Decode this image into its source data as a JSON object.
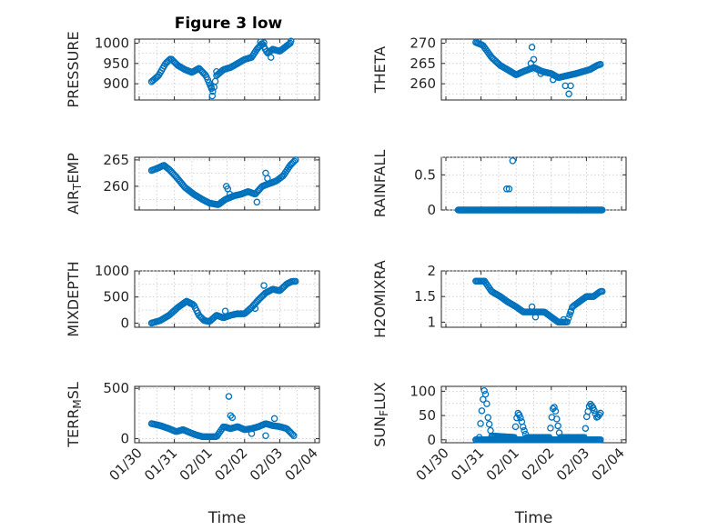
{
  "figure_title": "Figure 3 low",
  "colors": {
    "marker": "#0072BD",
    "axis": "#262626",
    "grid": "#c8c8c8",
    "background": "#ffffff"
  },
  "time_ticks": [
    "01/30",
    "01/31",
    "02/01",
    "02/02",
    "02/03",
    "02/04"
  ],
  "time_axis_label": "Time",
  "chart_data": [
    {
      "type": "scatter",
      "grid": true,
      "title": "Figure 3 low",
      "ylabel": "PRESSURE",
      "xlabel": "",
      "ylim": [
        860,
        1010
      ],
      "xlim": [
        0,
        5
      ],
      "yticks": [
        900,
        950,
        1000
      ],
      "ytick_labels": [
        "900",
        "950",
        "1000"
      ],
      "curve": [
        [
          0.35,
          905
        ],
        [
          0.55,
          920
        ],
        [
          0.75,
          950
        ],
        [
          0.9,
          962
        ],
        [
          1.1,
          945
        ],
        [
          1.3,
          935
        ],
        [
          1.5,
          928
        ],
        [
          1.7,
          938
        ],
        [
          1.9,
          920
        ],
        [
          2.0,
          900
        ],
        [
          2.1,
          880
        ],
        [
          2.2,
          920
        ],
        [
          2.4,
          935
        ],
        [
          2.6,
          940
        ],
        [
          2.8,
          950
        ],
        [
          3.0,
          960
        ],
        [
          3.2,
          965
        ],
        [
          3.35,
          985
        ],
        [
          3.5,
          1000
        ],
        [
          3.65,
          975
        ],
        [
          3.8,
          985
        ],
        [
          4.0,
          980
        ],
        [
          4.15,
          990
        ],
        [
          4.3,
          1000
        ]
      ],
      "outliers": [
        [
          2.05,
          892
        ],
        [
          2.08,
          870
        ],
        [
          2.2,
          930
        ],
        [
          3.45,
          1003
        ],
        [
          3.55,
          1001
        ],
        [
          3.75,
          965
        ],
        [
          4.32,
          1005
        ]
      ]
    },
    {
      "type": "scatter",
      "grid": true,
      "ylabel": "THETA",
      "xlabel": "",
      "ylim": [
        256,
        271
      ],
      "xlim": [
        0,
        5
      ],
      "yticks": [
        260,
        265,
        270
      ],
      "ytick_labels": [
        "260",
        "265",
        "270"
      ],
      "curve": [
        [
          0.85,
          270.2
        ],
        [
          1.05,
          269.5
        ],
        [
          1.3,
          266.5
        ],
        [
          1.55,
          264.5
        ],
        [
          1.75,
          263.5
        ],
        [
          2.0,
          262.2
        ],
        [
          2.2,
          263
        ],
        [
          2.5,
          264
        ],
        [
          2.75,
          263
        ],
        [
          3.0,
          262.5
        ],
        [
          3.2,
          261.5
        ],
        [
          3.45,
          262
        ],
        [
          3.7,
          262.5
        ],
        [
          3.9,
          263
        ],
        [
          4.1,
          263.5
        ],
        [
          4.3,
          264.5
        ],
        [
          4.4,
          264.8
        ]
      ],
      "outliers": [
        [
          2.45,
          269
        ],
        [
          2.5,
          266
        ],
        [
          2.42,
          265
        ],
        [
          2.7,
          262.5
        ],
        [
          3.05,
          261
        ],
        [
          3.4,
          259.5
        ],
        [
          3.5,
          257.5
        ],
        [
          3.55,
          259.5
        ]
      ]
    },
    {
      "type": "scatter",
      "grid": true,
      "ylabel": "AIR_TEMP",
      "xlabel": "",
      "ylim": [
        255.5,
        265.5
      ],
      "xlim": [
        0,
        5
      ],
      "yticks": [
        260,
        265
      ],
      "ytick_labels": [
        "260",
        "265"
      ],
      "curve": [
        [
          0.35,
          263
        ],
        [
          0.55,
          263.5
        ],
        [
          0.7,
          264
        ],
        [
          0.85,
          263.2
        ],
        [
          1.05,
          261.8
        ],
        [
          1.3,
          259.8
        ],
        [
          1.55,
          258.5
        ],
        [
          1.8,
          257.5
        ],
        [
          2.0,
          256.8
        ],
        [
          2.25,
          256.5
        ],
        [
          2.45,
          257.5
        ],
        [
          2.7,
          258.2
        ],
        [
          2.9,
          258.5
        ],
        [
          3.1,
          259
        ],
        [
          3.3,
          258.5
        ],
        [
          3.5,
          260
        ],
        [
          3.7,
          260.5
        ],
        [
          3.9,
          261
        ],
        [
          4.1,
          262
        ],
        [
          4.3,
          264
        ],
        [
          4.45,
          265
        ]
      ],
      "outliers": [
        [
          2.48,
          260
        ],
        [
          2.52,
          259.5
        ],
        [
          2.58,
          258.5
        ],
        [
          3.35,
          257
        ],
        [
          3.65,
          261.5
        ],
        [
          3.6,
          262.5
        ]
      ]
    },
    {
      "type": "scatter",
      "grid": true,
      "ylabel": "RAINFALL",
      "xlabel": "",
      "ylim": [
        0,
        0.75
      ],
      "xlim": [
        0,
        5
      ],
      "yticks": [
        0,
        0.5
      ],
      "ytick_labels": [
        "0",
        "0.5"
      ],
      "baseline": {
        "y": 0,
        "x_range": [
          0.35,
          4.45
        ],
        "count": 170
      },
      "outliers": [
        [
          1.73,
          0.3
        ],
        [
          1.8,
          0.3
        ],
        [
          1.9,
          0.7
        ]
      ]
    },
    {
      "type": "scatter",
      "grid": true,
      "ylabel": "MIXDEPTH",
      "xlabel": "",
      "ylim": [
        -80,
        1000
      ],
      "xlim": [
        0,
        5
      ],
      "yticks": [
        0,
        500,
        1000
      ],
      "ytick_labels": [
        "0",
        "500",
        "1000"
      ],
      "curve": [
        [
          0.35,
          0
        ],
        [
          0.6,
          50
        ],
        [
          0.85,
          150
        ],
        [
          1.1,
          300
        ],
        [
          1.35,
          420
        ],
        [
          1.55,
          350
        ],
        [
          1.7,
          150
        ],
        [
          1.85,
          50
        ],
        [
          2.0,
          30
        ],
        [
          2.2,
          150
        ],
        [
          2.4,
          100
        ],
        [
          2.6,
          150
        ],
        [
          2.8,
          180
        ],
        [
          3.0,
          180
        ],
        [
          3.2,
          300
        ],
        [
          3.4,
          450
        ],
        [
          3.6,
          580
        ],
        [
          3.8,
          650
        ],
        [
          4.0,
          620
        ],
        [
          4.2,
          750
        ],
        [
          4.35,
          800
        ],
        [
          4.45,
          800
        ]
      ],
      "outliers": [
        [
          1.45,
          380
        ],
        [
          2.45,
          230
        ],
        [
          3.3,
          280
        ],
        [
          3.55,
          720
        ]
      ]
    },
    {
      "type": "scatter",
      "grid": true,
      "ylabel": "H2OMIXRA",
      "xlabel": "",
      "ylim": [
        0.9,
        2.0
      ],
      "xlim": [
        0,
        5
      ],
      "yticks": [
        1,
        1.5,
        2
      ],
      "ytick_labels": [
        "1",
        "1.5",
        "2"
      ],
      "curve": [
        [
          0.85,
          1.8
        ],
        [
          1.1,
          1.8
        ],
        [
          1.3,
          1.6
        ],
        [
          1.55,
          1.5
        ],
        [
          1.75,
          1.4
        ],
        [
          2.0,
          1.3
        ],
        [
          2.2,
          1.2
        ],
        [
          2.5,
          1.2
        ],
        [
          2.8,
          1.2
        ],
        [
          3.0,
          1.1
        ],
        [
          3.2,
          1.0
        ],
        [
          3.45,
          1.0
        ],
        [
          3.6,
          1.3
        ],
        [
          3.8,
          1.4
        ],
        [
          4.0,
          1.5
        ],
        [
          4.2,
          1.5
        ],
        [
          4.4,
          1.6
        ],
        [
          4.45,
          1.6
        ]
      ],
      "outliers": [
        [
          2.45,
          1.3
        ],
        [
          2.55,
          1.1
        ],
        [
          3.35,
          1.05
        ],
        [
          3.55,
          1.2
        ]
      ]
    },
    {
      "type": "scatter",
      "grid": true,
      "ylabel": "TERR_MSL",
      "xlabel": "Time",
      "ylim": [
        -40,
        520
      ],
      "xlim": [
        0,
        5
      ],
      "yticks": [
        0,
        500
      ],
      "ytick_labels": [
        "0",
        "500"
      ],
      "xticks": [
        0,
        1,
        2,
        3,
        4,
        5
      ],
      "xtick_labels": [
        "01/30",
        "01/31",
        "02/01",
        "02/02",
        "02/03",
        "02/04"
      ],
      "curve": [
        [
          0.35,
          150
        ],
        [
          0.6,
          130
        ],
        [
          0.85,
          100
        ],
        [
          1.05,
          70
        ],
        [
          1.25,
          90
        ],
        [
          1.45,
          60
        ],
        [
          1.6,
          40
        ],
        [
          1.8,
          20
        ],
        [
          2.0,
          20
        ],
        [
          2.2,
          20
        ],
        [
          2.4,
          120
        ],
        [
          2.6,
          100
        ],
        [
          2.8,
          120
        ],
        [
          3.0,
          90
        ],
        [
          3.2,
          100
        ],
        [
          3.4,
          120
        ],
        [
          3.6,
          150
        ],
        [
          3.8,
          130
        ],
        [
          4.0,
          120
        ],
        [
          4.2,
          100
        ],
        [
          4.4,
          30
        ]
      ],
      "outliers": [
        [
          2.55,
          420
        ],
        [
          2.6,
          230
        ],
        [
          2.65,
          210
        ],
        [
          3.85,
          200
        ],
        [
          3.2,
          50
        ],
        [
          3.6,
          30
        ]
      ]
    },
    {
      "type": "scatter",
      "grid": true,
      "ylabel": "SUN_FLUX",
      "xlabel": "Time",
      "ylim": [
        -6,
        110
      ],
      "xlim": [
        0,
        5
      ],
      "yticks": [
        0,
        50,
        100
      ],
      "ytick_labels": [
        "0",
        "50",
        "100"
      ],
      "xticks": [
        0,
        1,
        2,
        3,
        4,
        5
      ],
      "xtick_labels": [
        "01/30",
        "01/31",
        "02/01",
        "02/02",
        "02/03",
        "02/04"
      ],
      "baseline": {
        "y": 0,
        "x_range": [
          0.85,
          4.4
        ],
        "count": 110
      },
      "curve": [
        [
          0.95,
          5
        ],
        [
          1.0,
          45
        ],
        [
          1.05,
          80
        ],
        [
          1.1,
          105
        ],
        [
          1.15,
          85
        ],
        [
          1.2,
          45
        ],
        [
          1.3,
          8
        ],
        [
          1.95,
          5
        ],
        [
          2.0,
          40
        ],
        [
          2.05,
          55
        ],
        [
          2.1,
          50
        ],
        [
          2.15,
          40
        ],
        [
          2.2,
          25
        ],
        [
          2.3,
          5
        ],
        [
          2.95,
          5
        ],
        [
          3.0,
          40
        ],
        [
          3.05,
          65
        ],
        [
          3.1,
          68
        ],
        [
          3.15,
          45
        ],
        [
          3.25,
          5
        ],
        [
          3.95,
          5
        ],
        [
          4.0,
          45
        ],
        [
          4.1,
          75
        ],
        [
          4.2,
          65
        ],
        [
          4.3,
          45
        ],
        [
          4.4,
          55
        ]
      ],
      "outliers": []
    }
  ]
}
